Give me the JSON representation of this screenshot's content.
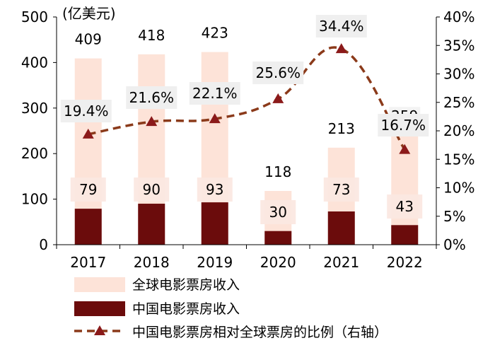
{
  "chart_data": {
    "type": "bar",
    "unit_label": "(亿美元)",
    "categories": [
      "2017",
      "2018",
      "2019",
      "2020",
      "2021",
      "2022"
    ],
    "series": [
      {
        "name": "全球电影票房收入",
        "kind": "bar",
        "axis": "left",
        "values": [
          409,
          418,
          423,
          118,
          213,
          259
        ],
        "color": "#fde3d8"
      },
      {
        "name": "中国电影票房收入",
        "kind": "bar",
        "axis": "left",
        "values": [
          79,
          90,
          93,
          30,
          73,
          43
        ],
        "color": "#6b0c0c"
      },
      {
        "name": "中国电影票房相对全球票房的比例（右轴）",
        "kind": "line",
        "axis": "right",
        "values": [
          19.4,
          21.6,
          22.1,
          25.6,
          34.4,
          16.7
        ],
        "labels": [
          "19.4%",
          "21.6%",
          "22.1%",
          "25.6%",
          "34.4%",
          "16.7%"
        ],
        "color": "#8b3a1a",
        "marker": "triangle",
        "dash": "dashed"
      }
    ],
    "y_left": {
      "min": 0,
      "max": 500,
      "ticks": [
        "0",
        "100",
        "200",
        "300",
        "400",
        "500"
      ]
    },
    "y_right": {
      "min": 0,
      "max": 40,
      "ticks": [
        "0%",
        "5%",
        "10%",
        "15%",
        "20%",
        "25%",
        "30%",
        "35%",
        "40%"
      ]
    },
    "legend_position": "bottom",
    "grid": false
  }
}
